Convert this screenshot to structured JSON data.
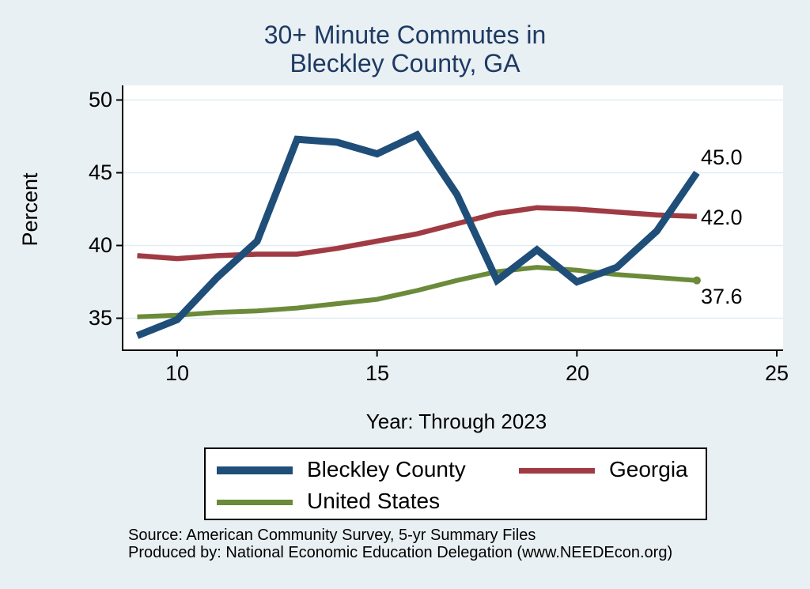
{
  "title": {
    "line1": "30+ Minute Commutes in",
    "line2": "Bleckley County, GA"
  },
  "chart_data": {
    "type": "line",
    "title": "30+ Minute Commutes in Bleckley County, GA",
    "xlabel": "Year: Through 2023",
    "ylabel": "Percent",
    "x": [
      9,
      10,
      11,
      12,
      13,
      14,
      15,
      16,
      17,
      18,
      19,
      20,
      21,
      22,
      23
    ],
    "years": [
      2009,
      2010,
      2011,
      2012,
      2013,
      2014,
      2015,
      2016,
      2017,
      2018,
      2019,
      2020,
      2021,
      2022,
      2023
    ],
    "x_ticks": [
      10,
      15,
      20,
      25
    ],
    "x_tick_labels": [
      "10",
      "15",
      "20",
      "25"
    ],
    "y_ticks": [
      50,
      45,
      40,
      35
    ],
    "y_tick_labels": [
      "50",
      "45",
      "40",
      "35"
    ],
    "xlim": [
      8.6,
      25.2
    ],
    "ylim": [
      32.8,
      51.0
    ],
    "grid": true,
    "legend_position": "bottom",
    "series": [
      {
        "name": "Bleckley County",
        "color": "#1f4e79",
        "line_width": 9,
        "end_label": "45.0",
        "end_marker": false,
        "values": [
          33.8,
          34.9,
          37.8,
          40.3,
          47.3,
          47.1,
          46.3,
          47.6,
          43.5,
          37.6,
          39.7,
          37.5,
          38.5,
          41.0,
          45.0
        ]
      },
      {
        "name": "Georgia",
        "color": "#a03b44",
        "line_width": 6.5,
        "end_label": "42.0",
        "end_marker": false,
        "values": [
          39.3,
          39.1,
          39.3,
          39.4,
          39.4,
          39.8,
          40.3,
          40.8,
          41.5,
          42.2,
          42.6,
          42.5,
          42.3,
          42.1,
          42.0
        ]
      },
      {
        "name": "United States",
        "color": "#6b8a3a",
        "line_width": 6,
        "end_label": "37.6",
        "end_marker": true,
        "values": [
          35.1,
          35.2,
          35.4,
          35.5,
          35.7,
          36.0,
          36.3,
          36.9,
          37.6,
          38.2,
          38.5,
          38.3,
          38.0,
          37.8,
          37.6
        ]
      }
    ]
  },
  "footer": {
    "source": "Source: American Community Survey, 5-yr Summary Files",
    "produced_by": "Produced by: National Economic Education Delegation (www.NEEDEcon.org)"
  },
  "colors": {
    "background": "#e9f0f3",
    "plot_background": "#ffffff",
    "gridline": "#e2edf1",
    "axis": "#000000",
    "title_text": "#1e3a63"
  }
}
